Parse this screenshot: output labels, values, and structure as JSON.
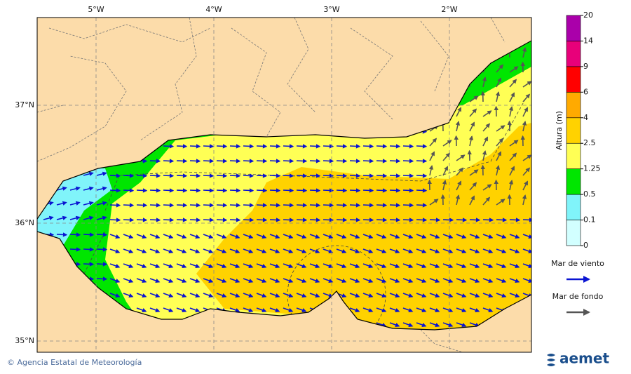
{
  "map": {
    "longitude_labels": [
      "5°W",
      "4°W",
      "3°W",
      "2°W"
    ],
    "latitude_labels": [
      "37°N",
      "36°N",
      "35°N"
    ],
    "colorbar": {
      "title": "Altura (m)",
      "levels": [
        0,
        0.1,
        0.5,
        1.25,
        2.5,
        4,
        6,
        9,
        14,
        20
      ],
      "colors": [
        "#d2ffff",
        "#80f4fa",
        "#00e600",
        "#ffff55",
        "#ffd200",
        "#ffaa00",
        "#ff0000",
        "#e8007a",
        "#aa00aa"
      ]
    },
    "legend": [
      {
        "label": "Mar de viento",
        "color": "#0a14d2"
      },
      {
        "label": "Mar de fondo",
        "color": "#555555"
      }
    ]
  },
  "footer": {
    "credit": "© Agencia Estatal de Meteorología",
    "logo": "aemet"
  }
}
